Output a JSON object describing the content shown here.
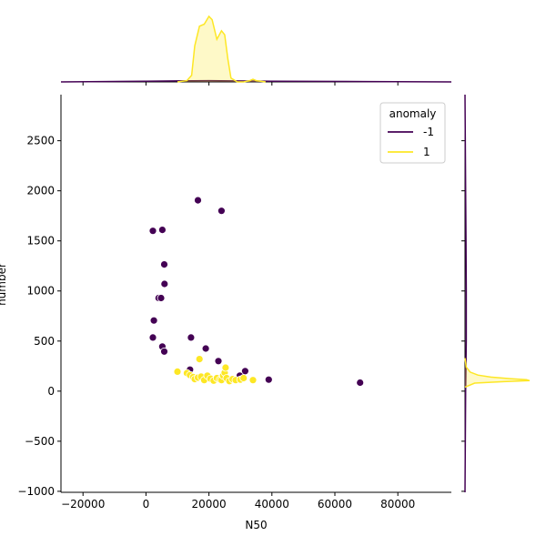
{
  "chart_data": {
    "type": "scatter",
    "xlabel": "N50",
    "ylabel": "number",
    "xlim": [
      -27000,
      97000
    ],
    "ylim": [
      -1010,
      2960
    ],
    "xticks": [
      -20000,
      0,
      20000,
      40000,
      60000,
      80000
    ],
    "yticks": [
      -1000,
      -500,
      0,
      500,
      1000,
      1500,
      2000,
      2500
    ],
    "xtick_labels": [
      "−20000",
      "0",
      "20000",
      "40000",
      "60000",
      "80000"
    ],
    "ytick_labels": [
      "−1000",
      "−500",
      "0",
      "500",
      "1000",
      "1500",
      "2000",
      "2500"
    ],
    "grid": false,
    "legend": {
      "title": "anomaly",
      "placement": "upper-right",
      "entries": [
        {
          "label": "-1",
          "color": "#440154"
        },
        {
          "label": "1",
          "color": "#fde725"
        }
      ]
    },
    "series": [
      {
        "name": "-1",
        "color": "#440154",
        "points": [
          [
            16500,
            1905
          ],
          [
            24000,
            1800
          ],
          [
            2200,
            1600
          ],
          [
            5200,
            1610
          ],
          [
            5800,
            1265
          ],
          [
            5900,
            1070
          ],
          [
            4000,
            930
          ],
          [
            4800,
            930
          ],
          [
            2500,
            705
          ],
          [
            2200,
            535
          ],
          [
            14300,
            535
          ],
          [
            5200,
            445
          ],
          [
            5800,
            395
          ],
          [
            19000,
            425
          ],
          [
            23000,
            300
          ],
          [
            14000,
            215
          ],
          [
            31500,
            200
          ],
          [
            29800,
            155
          ],
          [
            39000,
            115
          ],
          [
            68000,
            85
          ]
        ]
      },
      {
        "name": "1",
        "color": "#fde725",
        "points": [
          [
            10000,
            195
          ],
          [
            13000,
            180
          ],
          [
            14000,
            160
          ],
          [
            15000,
            140
          ],
          [
            15500,
            120
          ],
          [
            16500,
            135
          ],
          [
            17000,
            320
          ],
          [
            17500,
            145
          ],
          [
            18500,
            110
          ],
          [
            19500,
            155
          ],
          [
            20500,
            125
          ],
          [
            21500,
            105
          ],
          [
            22500,
            130
          ],
          [
            23500,
            115
          ],
          [
            24000,
            110
          ],
          [
            24500,
            155
          ],
          [
            25000,
            185
          ],
          [
            25300,
            235
          ],
          [
            25600,
            130
          ],
          [
            26500,
            100
          ],
          [
            27500,
            120
          ],
          [
            28500,
            110
          ],
          [
            30000,
            115
          ],
          [
            31000,
            130
          ],
          [
            34000,
            110
          ]
        ]
      }
    ],
    "marginal_x": {
      "type": "kde",
      "series": [
        {
          "name": "-1",
          "color": "#440154",
          "x": [
            -27000,
            0,
            10000,
            20000,
            40000,
            70000,
            97000
          ],
          "density": [
            0.0,
            0.01,
            0.015,
            0.02,
            0.01,
            0.005,
            0.0
          ]
        },
        {
          "name": "1",
          "color": "#fde725",
          "x": [
            10000,
            13000,
            14500,
            15500,
            17000,
            18500,
            20000,
            21000,
            22500,
            24000,
            25000,
            26000,
            27000,
            29000,
            31000,
            33000,
            34000,
            35000,
            38000
          ],
          "density": [
            0.0,
            0.02,
            0.1,
            0.55,
            0.85,
            0.88,
            1.0,
            0.95,
            0.65,
            0.78,
            0.72,
            0.35,
            0.06,
            0.0,
            0.0,
            0.02,
            0.04,
            0.02,
            0.0
          ]
        }
      ]
    },
    "marginal_y": {
      "type": "kde",
      "series": [
        {
          "name": "-1",
          "color": "#440154",
          "y": [
            -1010,
            0,
            500,
            1000,
            1500,
            2000,
            2960
          ],
          "density": [
            0.0,
            0.01,
            0.02,
            0.02,
            0.015,
            0.01,
            0.0
          ]
        },
        {
          "name": "1",
          "color": "#fde725",
          "y": [
            40,
            80,
            95,
            105,
            115,
            125,
            140,
            160,
            190,
            240,
            330
          ],
          "density": [
            0.0,
            0.15,
            0.6,
            1.0,
            0.95,
            0.7,
            0.4,
            0.2,
            0.08,
            0.02,
            0.0
          ]
        }
      ]
    }
  }
}
